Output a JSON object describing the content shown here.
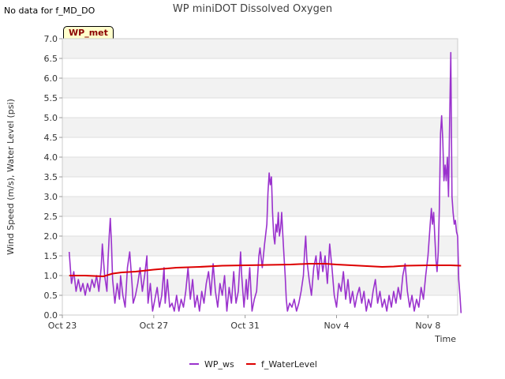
{
  "header": {
    "nodata_text": "No data for f_MD_DO",
    "badge_text": "WP_met"
  },
  "chart_data": {
    "type": "line",
    "title": "WP miniDOT Dissolved Oxygen",
    "xlabel": "Time",
    "ylabel": "Wind Speed (m/s), Water Level (psi)",
    "xlim": [
      0,
      17.3
    ],
    "ylim": [
      0,
      7
    ],
    "x_unit": "days since Oct 23",
    "xticks": [
      {
        "value": 0,
        "label": "Oct 23"
      },
      {
        "value": 4,
        "label": "Oct 27"
      },
      {
        "value": 8,
        "label": "Oct 31"
      },
      {
        "value": 12,
        "label": "Nov 4"
      },
      {
        "value": 16,
        "label": "Nov 8"
      }
    ],
    "yticks": [
      "0.0",
      "0.5",
      "1.0",
      "1.5",
      "2.0",
      "2.5",
      "3.0",
      "3.5",
      "4.0",
      "4.5",
      "5.0",
      "5.5",
      "6.0",
      "6.5",
      "7.0"
    ],
    "series": [
      {
        "name": "WP_ws",
        "color": "#9a32cd",
        "points": [
          [
            0.3,
            1.6
          ],
          [
            0.4,
            0.8
          ],
          [
            0.5,
            1.1
          ],
          [
            0.6,
            0.6
          ],
          [
            0.7,
            0.9
          ],
          [
            0.8,
            0.6
          ],
          [
            0.9,
            0.8
          ],
          [
            1.0,
            0.5
          ],
          [
            1.1,
            0.8
          ],
          [
            1.2,
            0.6
          ],
          [
            1.3,
            0.9
          ],
          [
            1.4,
            0.7
          ],
          [
            1.5,
            1.0
          ],
          [
            1.6,
            0.6
          ],
          [
            1.7,
            1.2
          ],
          [
            1.75,
            1.8
          ],
          [
            1.85,
            1.0
          ],
          [
            1.95,
            0.6
          ],
          [
            2.0,
            1.4
          ],
          [
            2.05,
            2.0
          ],
          [
            2.1,
            2.45
          ],
          [
            2.15,
            1.8
          ],
          [
            2.2,
            0.9
          ],
          [
            2.3,
            0.3
          ],
          [
            2.4,
            0.8
          ],
          [
            2.5,
            0.4
          ],
          [
            2.55,
            1.0
          ],
          [
            2.65,
            0.5
          ],
          [
            2.75,
            0.2
          ],
          [
            2.85,
            1.2
          ],
          [
            2.95,
            1.6
          ],
          [
            3.05,
            0.8
          ],
          [
            3.1,
            0.3
          ],
          [
            3.2,
            0.5
          ],
          [
            3.3,
            0.8
          ],
          [
            3.4,
            1.2
          ],
          [
            3.5,
            0.6
          ],
          [
            3.6,
            1.0
          ],
          [
            3.7,
            1.5
          ],
          [
            3.75,
            0.3
          ],
          [
            3.85,
            0.8
          ],
          [
            3.95,
            0.1
          ],
          [
            4.05,
            0.4
          ],
          [
            4.15,
            0.7
          ],
          [
            4.25,
            0.2
          ],
          [
            4.35,
            0.5
          ],
          [
            4.45,
            1.2
          ],
          [
            4.5,
            0.3
          ],
          [
            4.6,
            0.9
          ],
          [
            4.7,
            0.2
          ],
          [
            4.8,
            0.3
          ],
          [
            4.9,
            0.1
          ],
          [
            5.0,
            0.5
          ],
          [
            5.1,
            0.1
          ],
          [
            5.2,
            0.4
          ],
          [
            5.3,
            0.2
          ],
          [
            5.4,
            0.6
          ],
          [
            5.5,
            1.2
          ],
          [
            5.6,
            0.4
          ],
          [
            5.7,
            0.9
          ],
          [
            5.8,
            0.2
          ],
          [
            5.9,
            0.5
          ],
          [
            6.0,
            0.1
          ],
          [
            6.1,
            0.6
          ],
          [
            6.2,
            0.3
          ],
          [
            6.3,
            0.8
          ],
          [
            6.4,
            1.1
          ],
          [
            6.5,
            0.5
          ],
          [
            6.6,
            1.3
          ],
          [
            6.7,
            0.6
          ],
          [
            6.8,
            0.2
          ],
          [
            6.9,
            0.8
          ],
          [
            7.0,
            0.5
          ],
          [
            7.1,
            1.0
          ],
          [
            7.2,
            0.1
          ],
          [
            7.3,
            0.7
          ],
          [
            7.4,
            0.3
          ],
          [
            7.5,
            1.1
          ],
          [
            7.6,
            0.3
          ],
          [
            7.7,
            0.6
          ],
          [
            7.8,
            1.6
          ],
          [
            7.85,
            1.0
          ],
          [
            7.95,
            0.2
          ],
          [
            8.05,
            0.9
          ],
          [
            8.1,
            0.4
          ],
          [
            8.2,
            1.2
          ],
          [
            8.3,
            0.1
          ],
          [
            8.4,
            0.4
          ],
          [
            8.5,
            0.6
          ],
          [
            8.6,
            1.5
          ],
          [
            8.65,
            1.7
          ],
          [
            8.75,
            1.2
          ],
          [
            8.85,
            1.8
          ],
          [
            8.95,
            2.3
          ],
          [
            9.0,
            3.1
          ],
          [
            9.05,
            3.6
          ],
          [
            9.1,
            3.3
          ],
          [
            9.15,
            3.5
          ],
          [
            9.2,
            2.6
          ],
          [
            9.25,
            2.0
          ],
          [
            9.3,
            1.8
          ],
          [
            9.35,
            2.3
          ],
          [
            9.4,
            2.1
          ],
          [
            9.45,
            2.6
          ],
          [
            9.5,
            2.0
          ],
          [
            9.55,
            2.2
          ],
          [
            9.6,
            2.6
          ],
          [
            9.65,
            2.0
          ],
          [
            9.7,
            1.5
          ],
          [
            9.75,
            1.0
          ],
          [
            9.8,
            0.4
          ],
          [
            9.85,
            0.1
          ],
          [
            9.95,
            0.3
          ],
          [
            10.05,
            0.2
          ],
          [
            10.15,
            0.4
          ],
          [
            10.25,
            0.1
          ],
          [
            10.35,
            0.3
          ],
          [
            10.45,
            0.6
          ],
          [
            10.55,
            1.0
          ],
          [
            10.6,
            1.6
          ],
          [
            10.65,
            2.0
          ],
          [
            10.7,
            1.4
          ],
          [
            10.8,
            0.9
          ],
          [
            10.9,
            0.5
          ],
          [
            11.0,
            1.2
          ],
          [
            11.1,
            1.5
          ],
          [
            11.2,
            0.9
          ],
          [
            11.3,
            1.6
          ],
          [
            11.4,
            1.1
          ],
          [
            11.5,
            1.5
          ],
          [
            11.6,
            0.8
          ],
          [
            11.7,
            1.8
          ],
          [
            11.8,
            1.2
          ],
          [
            11.9,
            0.5
          ],
          [
            12.0,
            0.2
          ],
          [
            12.1,
            0.8
          ],
          [
            12.2,
            0.6
          ],
          [
            12.3,
            1.1
          ],
          [
            12.4,
            0.4
          ],
          [
            12.5,
            0.9
          ],
          [
            12.6,
            0.3
          ],
          [
            12.7,
            0.6
          ],
          [
            12.8,
            0.2
          ],
          [
            12.9,
            0.5
          ],
          [
            13.0,
            0.7
          ],
          [
            13.1,
            0.3
          ],
          [
            13.2,
            0.6
          ],
          [
            13.3,
            0.1
          ],
          [
            13.4,
            0.4
          ],
          [
            13.5,
            0.2
          ],
          [
            13.6,
            0.6
          ],
          [
            13.7,
            0.9
          ],
          [
            13.8,
            0.3
          ],
          [
            13.9,
            0.6
          ],
          [
            14.0,
            0.2
          ],
          [
            14.1,
            0.4
          ],
          [
            14.2,
            0.1
          ],
          [
            14.3,
            0.5
          ],
          [
            14.4,
            0.2
          ],
          [
            14.5,
            0.6
          ],
          [
            14.6,
            0.3
          ],
          [
            14.7,
            0.7
          ],
          [
            14.8,
            0.4
          ],
          [
            14.9,
            1.0
          ],
          [
            15.0,
            1.3
          ],
          [
            15.1,
            0.6
          ],
          [
            15.2,
            0.2
          ],
          [
            15.3,
            0.5
          ],
          [
            15.4,
            0.1
          ],
          [
            15.5,
            0.4
          ],
          [
            15.6,
            0.2
          ],
          [
            15.7,
            0.7
          ],
          [
            15.8,
            0.4
          ],
          [
            15.9,
            1.0
          ],
          [
            16.0,
            1.5
          ],
          [
            16.05,
            1.9
          ],
          [
            16.1,
            2.3
          ],
          [
            16.15,
            2.7
          ],
          [
            16.2,
            2.3
          ],
          [
            16.25,
            2.6
          ],
          [
            16.3,
            2.0
          ],
          [
            16.35,
            1.4
          ],
          [
            16.4,
            1.1
          ],
          [
            16.45,
            1.6
          ],
          [
            16.5,
            2.7
          ],
          [
            16.55,
            4.6
          ],
          [
            16.6,
            5.05
          ],
          [
            16.65,
            4.4
          ],
          [
            16.7,
            3.4
          ],
          [
            16.75,
            3.8
          ],
          [
            16.8,
            3.4
          ],
          [
            16.85,
            4.0
          ],
          [
            16.9,
            3.0
          ],
          [
            16.95,
            5.0
          ],
          [
            17.0,
            6.65
          ],
          [
            17.05,
            3.0
          ],
          [
            17.1,
            2.6
          ],
          [
            17.15,
            2.3
          ],
          [
            17.2,
            2.4
          ],
          [
            17.25,
            2.1
          ],
          [
            17.3,
            2.0
          ],
          [
            17.35,
            0.9
          ],
          [
            17.4,
            0.5
          ],
          [
            17.45,
            0.05
          ]
        ]
      },
      {
        "name": "f_WaterLevel",
        "color": "#dd0000",
        "points": [
          [
            0.3,
            1.0
          ],
          [
            1.0,
            1.0
          ],
          [
            1.8,
            0.98
          ],
          [
            2.2,
            1.05
          ],
          [
            2.6,
            1.08
          ],
          [
            3.2,
            1.1
          ],
          [
            4.0,
            1.15
          ],
          [
            5.0,
            1.2
          ],
          [
            6.0,
            1.22
          ],
          [
            7.0,
            1.25
          ],
          [
            8.0,
            1.26
          ],
          [
            9.0,
            1.27
          ],
          [
            10.0,
            1.28
          ],
          [
            10.8,
            1.3
          ],
          [
            11.5,
            1.3
          ],
          [
            12.0,
            1.28
          ],
          [
            13.0,
            1.25
          ],
          [
            14.0,
            1.22
          ],
          [
            14.5,
            1.23
          ],
          [
            15.0,
            1.25
          ],
          [
            16.0,
            1.26
          ],
          [
            17.0,
            1.26
          ],
          [
            17.45,
            1.25
          ]
        ]
      }
    ]
  }
}
